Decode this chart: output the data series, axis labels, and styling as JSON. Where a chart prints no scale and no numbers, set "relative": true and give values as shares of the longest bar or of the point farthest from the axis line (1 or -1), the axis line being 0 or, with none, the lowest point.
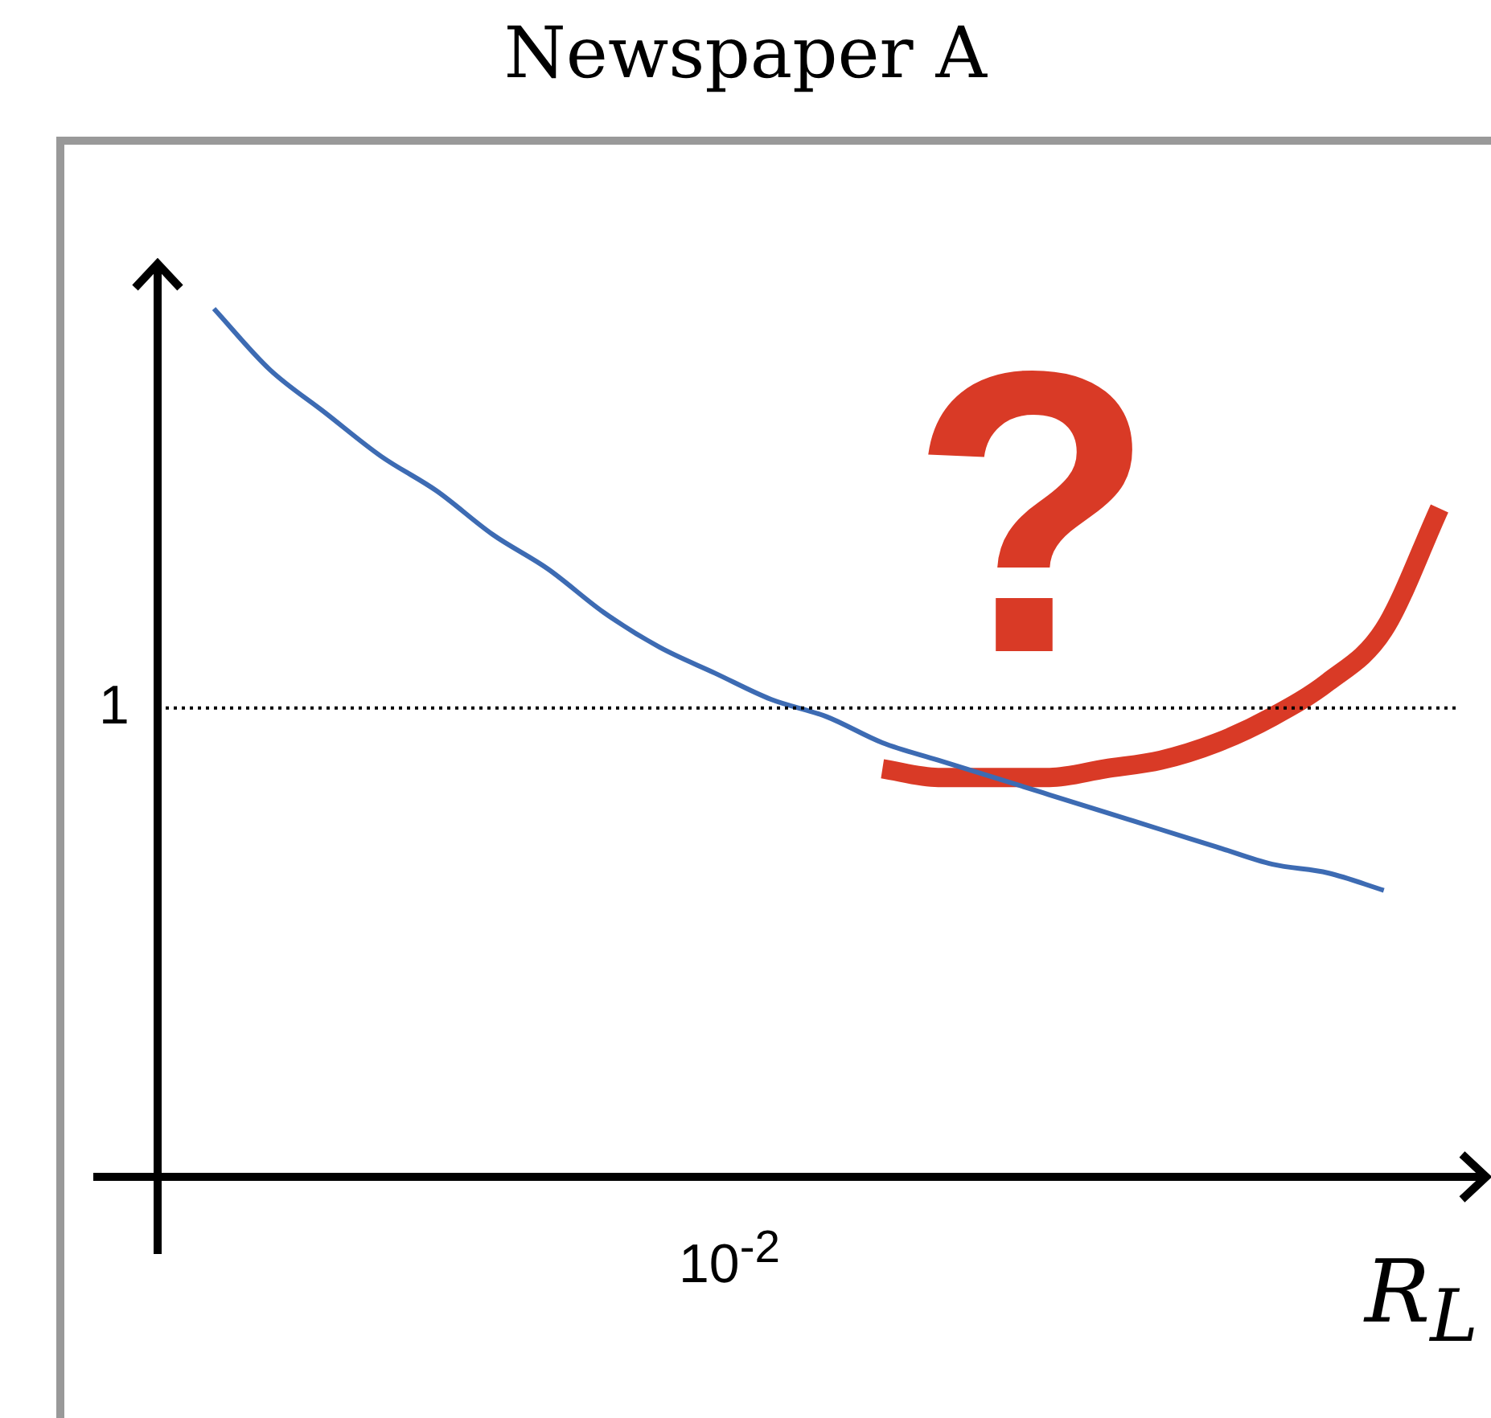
{
  "chart_data": {
    "type": "line",
    "title": "Newspaper A",
    "xlabel": "R$_{L}$",
    "relative": true,
    "legend": false,
    "grid": false,
    "marker": "none",
    "categories": [
      null,
      null,
      null,
      null,
      null,
      null,
      null,
      null,
      null,
      null,
      null,
      null,
      null,
      null,
      null,
      null,
      null,
      null,
      null,
      null,
      null,
      null,
      null
    ],
    "series": [
      {
        "color": "#3d6bb3",
        "values": [
          1.0,
          0.93,
          0.88,
          0.83,
          0.79,
          0.74,
          0.7,
          0.65,
          0.61,
          0.58,
          0.55,
          0.53,
          0.5,
          0.48,
          0.46,
          0.44,
          0.42,
          0.4,
          0.38,
          0.36,
          0.35,
          0.33,
          null
        ]
      },
      {
        "color": "#d93a26",
        "values": [
          null,
          null,
          null,
          null,
          null,
          null,
          null,
          null,
          null,
          null,
          null,
          null,
          0.47,
          0.46,
          0.46,
          0.46,
          0.47,
          0.48,
          0.5,
          0.53,
          0.57,
          0.63,
          0.77
        ]
      }
    ],
    "ref_lines": [
      {
        "axis": "y",
        "value": 0.54,
        "label": "1",
        "line_style": "dotted",
        "color": "#000000"
      }
    ],
    "annotations": [
      "?",
      "10$^{-2}$"
    ]
  }
}
